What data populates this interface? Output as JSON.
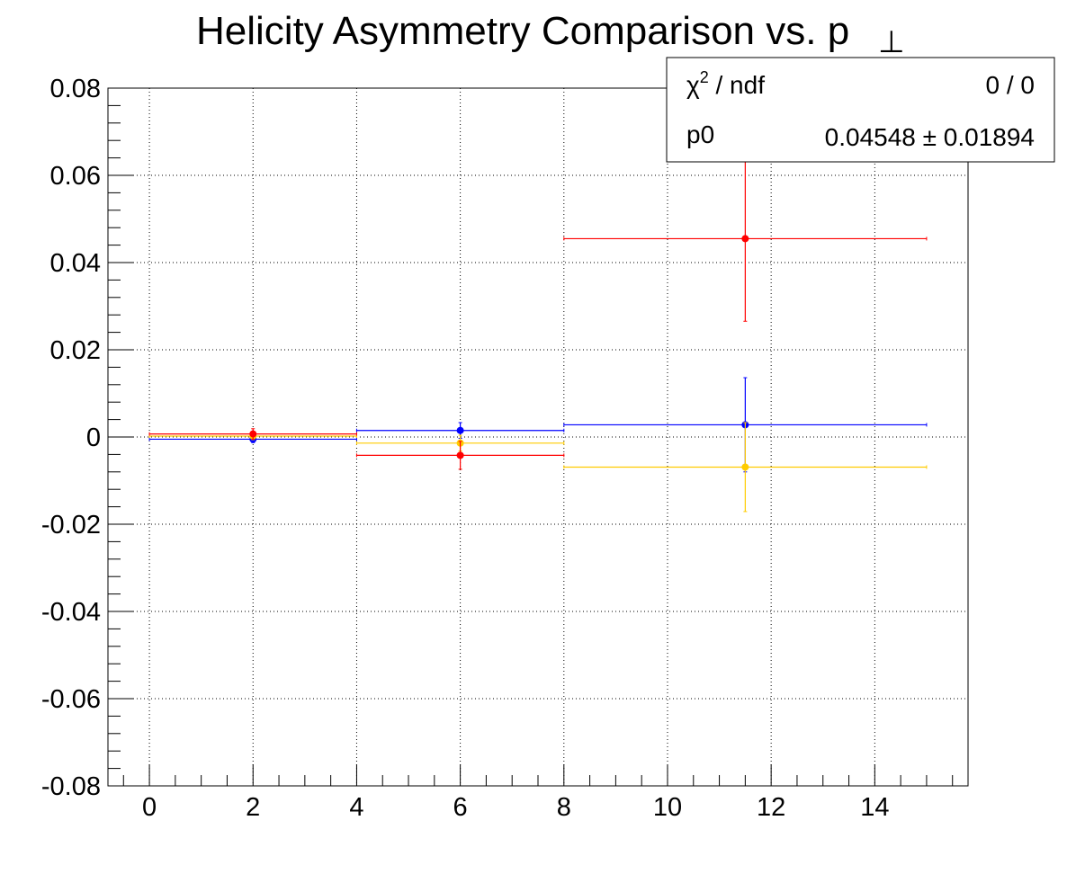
{
  "chart_data": {
    "type": "scatter",
    "title": "Helicity Asymmetry Comparison vs. p",
    "title_subscript": "⊥",
    "xlabel": "",
    "ylabel": "",
    "xlim": [
      -0.8,
      15.8
    ],
    "ylim": [
      -0.08,
      0.08
    ],
    "x_ticks": [
      "0",
      "2",
      "4",
      "6",
      "8",
      "10",
      "12",
      "14"
    ],
    "x_tick_values": [
      0,
      2,
      4,
      6,
      8,
      10,
      12,
      14
    ],
    "y_ticks": [
      "0.08",
      "0.06",
      "0.04",
      "0.02",
      "0",
      "-0.02",
      "-0.04",
      "-0.06",
      "-0.08"
    ],
    "y_tick_values": [
      0.08,
      0.06,
      0.04,
      0.02,
      0,
      -0.02,
      -0.04,
      -0.06,
      -0.08
    ],
    "grid": true,
    "series": [
      {
        "color": "#0000ff",
        "points": [
          {
            "x": 2,
            "xlow": 0,
            "xhigh": 4,
            "y": -0.0005,
            "yerr": 0.0008
          },
          {
            "x": 6,
            "xlow": 4,
            "xhigh": 8,
            "y": 0.0015,
            "yerr": 0.0018
          },
          {
            "x": 11.5,
            "xlow": 8,
            "xhigh": 15,
            "y": 0.0028,
            "yerr": 0.0108
          }
        ]
      },
      {
        "color": "#ffcc00",
        "points": [
          {
            "x": 2,
            "xlow": 0,
            "xhigh": 4,
            "y": 0.0002,
            "yerr": 0.0008
          },
          {
            "x": 6,
            "xlow": 4,
            "xhigh": 8,
            "y": -0.0014,
            "yerr": 0.0018
          },
          {
            "x": 11.5,
            "xlow": 8,
            "xhigh": 15,
            "y": -0.0069,
            "yerr": 0.0102
          }
        ]
      },
      {
        "color": "#ff0000",
        "points": [
          {
            "x": 2,
            "xlow": 0,
            "xhigh": 4,
            "y": 0.0007,
            "yerr": 0.0012
          },
          {
            "x": 6,
            "xlow": 4,
            "xhigh": 8,
            "y": -0.0042,
            "yerr": 0.0032
          },
          {
            "x": 11.5,
            "xlow": 8,
            "xhigh": 15,
            "y": 0.04548,
            "yerr": 0.01894
          }
        ]
      }
    ],
    "stats_box": {
      "chi2_label": "χ",
      "chi2_sup": "2",
      "chi2_suffix": " / ndf",
      "chi2_value": "0 / 0",
      "p0_label": "p0",
      "p0_value": "0.04548 ± 0.01894"
    }
  }
}
